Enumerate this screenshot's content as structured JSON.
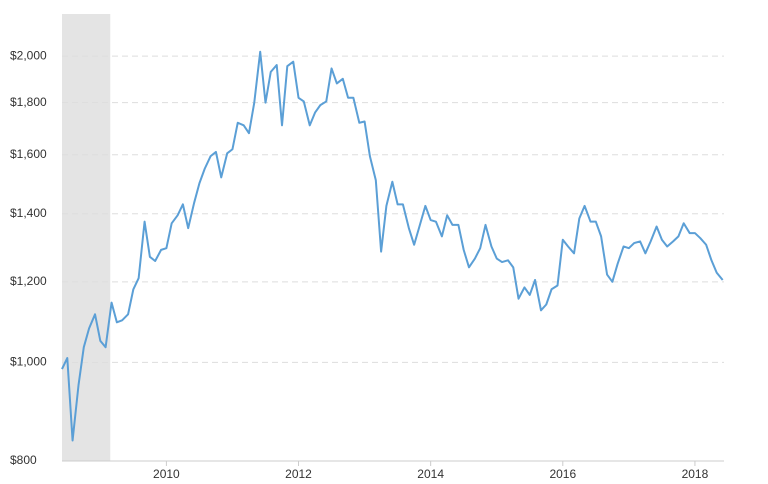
{
  "chart_data": {
    "type": "line",
    "log_scale": true,
    "grid": true,
    "color": "#5b9fd6",
    "shade_color": "#e4e4e4",
    "shaded_region": [
      2008.42,
      2009.15
    ],
    "xlim": [
      2008.42,
      2018.44
    ],
    "xticks": [
      2010,
      2012,
      2014,
      2016,
      2018
    ],
    "ylim": [
      800,
      2200
    ],
    "yticks": [
      {
        "value": 800,
        "label": "$800"
      },
      {
        "value": 1000,
        "label": "$1,000"
      },
      {
        "value": 1200,
        "label": "$1,200"
      },
      {
        "value": 1400,
        "label": "$1,400"
      },
      {
        "value": 1600,
        "label": "$1,600"
      },
      {
        "value": 1800,
        "label": "$1,800"
      },
      {
        "value": 2000,
        "label": "$2,000"
      }
    ],
    "x": [
      2008.42,
      2008.5,
      2008.58,
      2008.67,
      2008.75,
      2008.83,
      2008.92,
      2009,
      2009.08,
      2009.17,
      2009.25,
      2009.33,
      2009.42,
      2009.5,
      2009.58,
      2009.67,
      2009.75,
      2009.83,
      2009.92,
      2010,
      2010.08,
      2010.17,
      2010.25,
      2010.33,
      2010.42,
      2010.5,
      2010.58,
      2010.67,
      2010.75,
      2010.83,
      2010.92,
      2011,
      2011.08,
      2011.17,
      2011.25,
      2011.33,
      2011.42,
      2011.5,
      2011.58,
      2011.67,
      2011.75,
      2011.83,
      2011.92,
      2012,
      2012.08,
      2012.17,
      2012.25,
      2012.33,
      2012.42,
      2012.5,
      2012.58,
      2012.67,
      2012.75,
      2012.83,
      2012.92,
      2013,
      2013.08,
      2013.17,
      2013.25,
      2013.33,
      2013.42,
      2013.5,
      2013.58,
      2013.67,
      2013.75,
      2013.83,
      2013.92,
      2014,
      2014.08,
      2014.17,
      2014.25,
      2014.33,
      2014.42,
      2014.5,
      2014.58,
      2014.67,
      2014.75,
      2014.83,
      2014.92,
      2015,
      2015.08,
      2015.17,
      2015.25,
      2015.33,
      2015.42,
      2015.5,
      2015.58,
      2015.67,
      2015.75,
      2015.83,
      2015.92,
      2016,
      2016.08,
      2016.17,
      2016.25,
      2016.33,
      2016.42,
      2016.5,
      2016.58,
      2016.67,
      2016.75,
      2016.83,
      2016.92,
      2017,
      2017.08,
      2017.17,
      2017.25,
      2017.33,
      2017.42,
      2017.5,
      2017.58,
      2017.67,
      2017.75,
      2017.83,
      2017.92,
      2018,
      2018.08,
      2018.17,
      2018.25,
      2018.33,
      2018.42
    ],
    "values": [
      985,
      1010,
      838,
      950,
      1035,
      1080,
      1115,
      1050,
      1035,
      1145,
      1095,
      1100,
      1115,
      1180,
      1210,
      1375,
      1270,
      1258,
      1290,
      1295,
      1370,
      1395,
      1430,
      1355,
      1435,
      1500,
      1550,
      1595,
      1610,
      1520,
      1605,
      1620,
      1720,
      1710,
      1680,
      1800,
      2020,
      1800,
      1930,
      1960,
      1710,
      1955,
      1975,
      1820,
      1805,
      1710,
      1760,
      1790,
      1805,
      1945,
      1880,
      1900,
      1820,
      1820,
      1720,
      1725,
      1595,
      1510,
      1285,
      1425,
      1505,
      1430,
      1430,
      1355,
      1305,
      1360,
      1425,
      1380,
      1375,
      1330,
      1395,
      1365,
      1365,
      1290,
      1240,
      1265,
      1295,
      1365,
      1300,
      1265,
      1255,
      1260,
      1240,
      1155,
      1185,
      1165,
      1205,
      1125,
      1140,
      1180,
      1190,
      1320,
      1300,
      1280,
      1385,
      1425,
      1375,
      1375,
      1330,
      1220,
      1200,
      1250,
      1300,
      1295,
      1310,
      1315,
      1280,
      1315,
      1360,
      1320,
      1300,
      1315,
      1330,
      1370,
      1340,
      1340,
      1325,
      1305,
      1260,
      1225,
      1205
    ]
  }
}
